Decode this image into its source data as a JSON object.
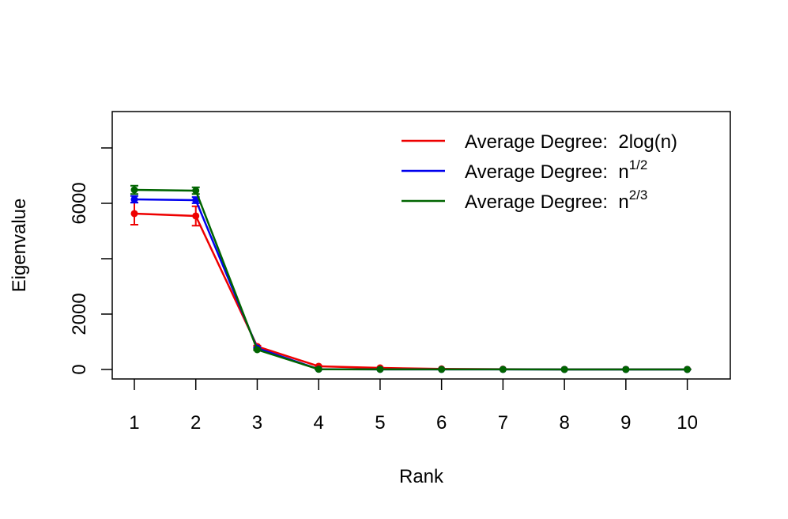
{
  "chart_data": {
    "type": "line",
    "xlabel": "Rank",
    "ylabel": "Eigenvalue",
    "x": [
      1,
      2,
      3,
      4,
      5,
      6,
      7,
      8,
      9,
      10
    ],
    "xlim": [
      0.64,
      10.7
    ],
    "xticks": [
      1,
      2,
      3,
      4,
      5,
      6,
      7,
      8,
      9,
      10
    ],
    "ylim": [
      -343,
      9314
    ],
    "yticks": [
      0,
      2000,
      {
        "value": 4000,
        "label": null
      },
      6000,
      {
        "value": 8000,
        "label": null
      }
    ],
    "legend": "top-right",
    "series": [
      {
        "name": "Average Degree:  2log(n)",
        "superscript": null,
        "color": "#ee0000",
        "values": [
          5629,
          5543,
          830,
          115,
          57,
          20,
          10,
          5,
          5,
          5
        ],
        "errors": [
          400,
          350,
          30,
          10,
          5,
          3,
          2,
          1,
          1,
          1
        ]
      },
      {
        "name": "Average Degree:  n",
        "superscript": "1/2",
        "color": "#0000ee",
        "values": [
          6143,
          6114,
          770,
          10,
          5,
          3,
          2,
          1,
          1,
          1
        ],
        "errors": [
          120,
          110,
          20,
          3,
          2,
          1,
          1,
          1,
          1,
          1
        ]
      },
      {
        "name": "Average Degree:  n",
        "superscript": "2/3",
        "color": "#006400",
        "values": [
          6486,
          6457,
          714,
          8,
          4,
          2,
          2,
          1,
          1,
          1
        ],
        "errors": [
          150,
          120,
          20,
          3,
          2,
          1,
          1,
          1,
          1,
          1
        ]
      }
    ]
  }
}
